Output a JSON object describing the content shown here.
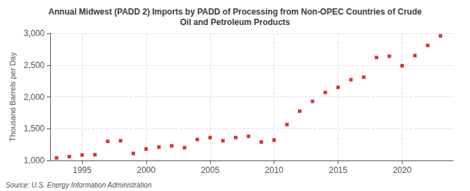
{
  "chart_data": {
    "type": "scatter",
    "title": "Annual Midwest (PADD 2) Imports by PADD of Processing from Non-OPEC Countries of Crude\nOil and Petroleum Products",
    "ylabel": "Thousand Barrels per Day",
    "annotations": [
      "Source: U.S. Energy Information Administration"
    ],
    "x": [
      1993,
      1994,
      1995,
      1996,
      1997,
      1998,
      1999,
      2000,
      2001,
      2002,
      2003,
      2004,
      2005,
      2006,
      2007,
      2008,
      2009,
      2010,
      2011,
      2012,
      2013,
      2014,
      2015,
      2016,
      2017,
      2018,
      2019,
      2020,
      2021,
      2022,
      2023
    ],
    "values": [
      1040,
      1060,
      1085,
      1090,
      1300,
      1310,
      1110,
      1180,
      1210,
      1230,
      1200,
      1330,
      1360,
      1310,
      1360,
      1380,
      1290,
      1320,
      1565,
      1775,
      1930,
      2070,
      2150,
      2270,
      2310,
      2620,
      2640,
      2490,
      2650,
      2810,
      2960
    ],
    "color": "#cc0000",
    "marker": "square",
    "xlim": [
      1992.5,
      2024
    ],
    "xticks": [
      1995,
      2000,
      2005,
      2010,
      2015,
      2020
    ],
    "ylim": [
      1000,
      3000
    ],
    "yticks": [
      {
        "value": 1000,
        "label": "1,000"
      },
      {
        "value": 1500,
        "label": "1,500"
      },
      {
        "value": 2000,
        "label": "2,000"
      },
      {
        "value": 2500,
        "label": "2,500"
      },
      {
        "value": 3000,
        "label": "3,000"
      }
    ],
    "grid": true
  }
}
